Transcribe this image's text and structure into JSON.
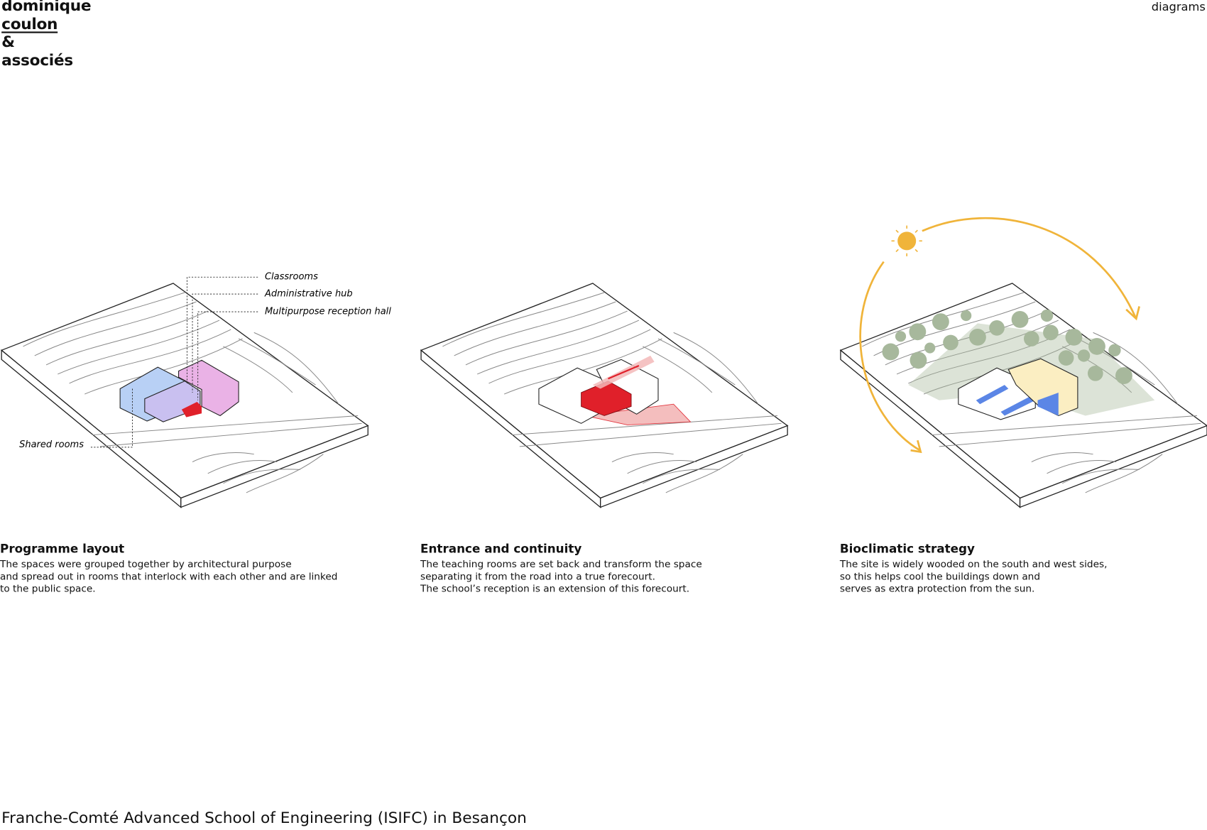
{
  "header": {
    "logo_lines": [
      "dominique",
      "coulon",
      "&",
      "associés"
    ],
    "section": "diagrams"
  },
  "diagrams": [
    {
      "title": "Programme layout",
      "text": "The spaces were grouped together by architectural purpose\nand spread out in rooms that interlock with each other and are linked\nto the public space.",
      "labels": [
        "Classrooms",
        "Administrative hub",
        "Multipurpose reception hall",
        "Shared rooms"
      ]
    },
    {
      "title": "Entrance and continuity",
      "text": "The teaching rooms are set back and transform the space\nseparating it from the road into a true forecourt.\nThe school’s reception is an extension of this forecourt."
    },
    {
      "title": "Bioclimatic strategy",
      "text": "The site is widely wooded on the south and west sides,\nso this helps cool the buildings down and\nserves as extra protection from the sun."
    }
  ],
  "colors": {
    "classrooms": "#b8d0f5",
    "admin": "#c9c0f0",
    "hall": "#eab2e6",
    "accent_red": "#e0202a",
    "sun": "#f0b43a",
    "trees": "#a7b89c",
    "blue": "#5b86e6",
    "yellow": "#fbeec2"
  },
  "footer": {
    "caption": "Franche-Comté Advanced School of Engineering (ISIFC) in Besançon"
  }
}
